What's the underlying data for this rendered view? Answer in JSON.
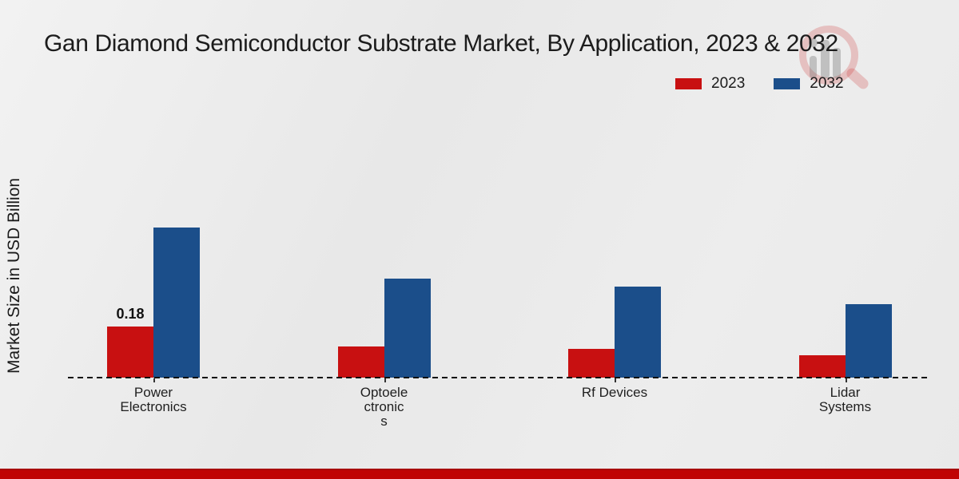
{
  "title": "Gan Diamond Semiconductor Substrate Market, By Application, 2023 & 2032",
  "y_axis_label": "Market Size in USD Billion",
  "footer": {
    "bar_color": "#c00404"
  },
  "chart_data": {
    "type": "bar",
    "title": "Gan Diamond Semiconductor Substrate Market, By Application, 2023 & 2032",
    "xlabel": "",
    "ylabel": "Market Size in USD Billion",
    "ylim": [
      0,
      0.6
    ],
    "grid": false,
    "legend_position": "top-right",
    "baseline_style": "dashed",
    "categories": [
      "Power Electronics",
      "Optoelectronics",
      "Rf Devices",
      "Lidar Systems"
    ],
    "category_display": [
      "Power\nElectronics",
      "Optoele\nctronic\ns",
      "Rf Devices",
      "Lidar\nSystems"
    ],
    "series": [
      {
        "name": "2023",
        "color": "#c81011",
        "values": [
          0.18,
          0.11,
          0.1,
          0.08
        ]
      },
      {
        "name": "2032",
        "color": "#1b4e8a",
        "values": [
          0.53,
          0.35,
          0.32,
          0.26
        ]
      }
    ],
    "data_labels": [
      {
        "series": "2023",
        "category": "Power Electronics",
        "text": "0.18"
      }
    ]
  }
}
